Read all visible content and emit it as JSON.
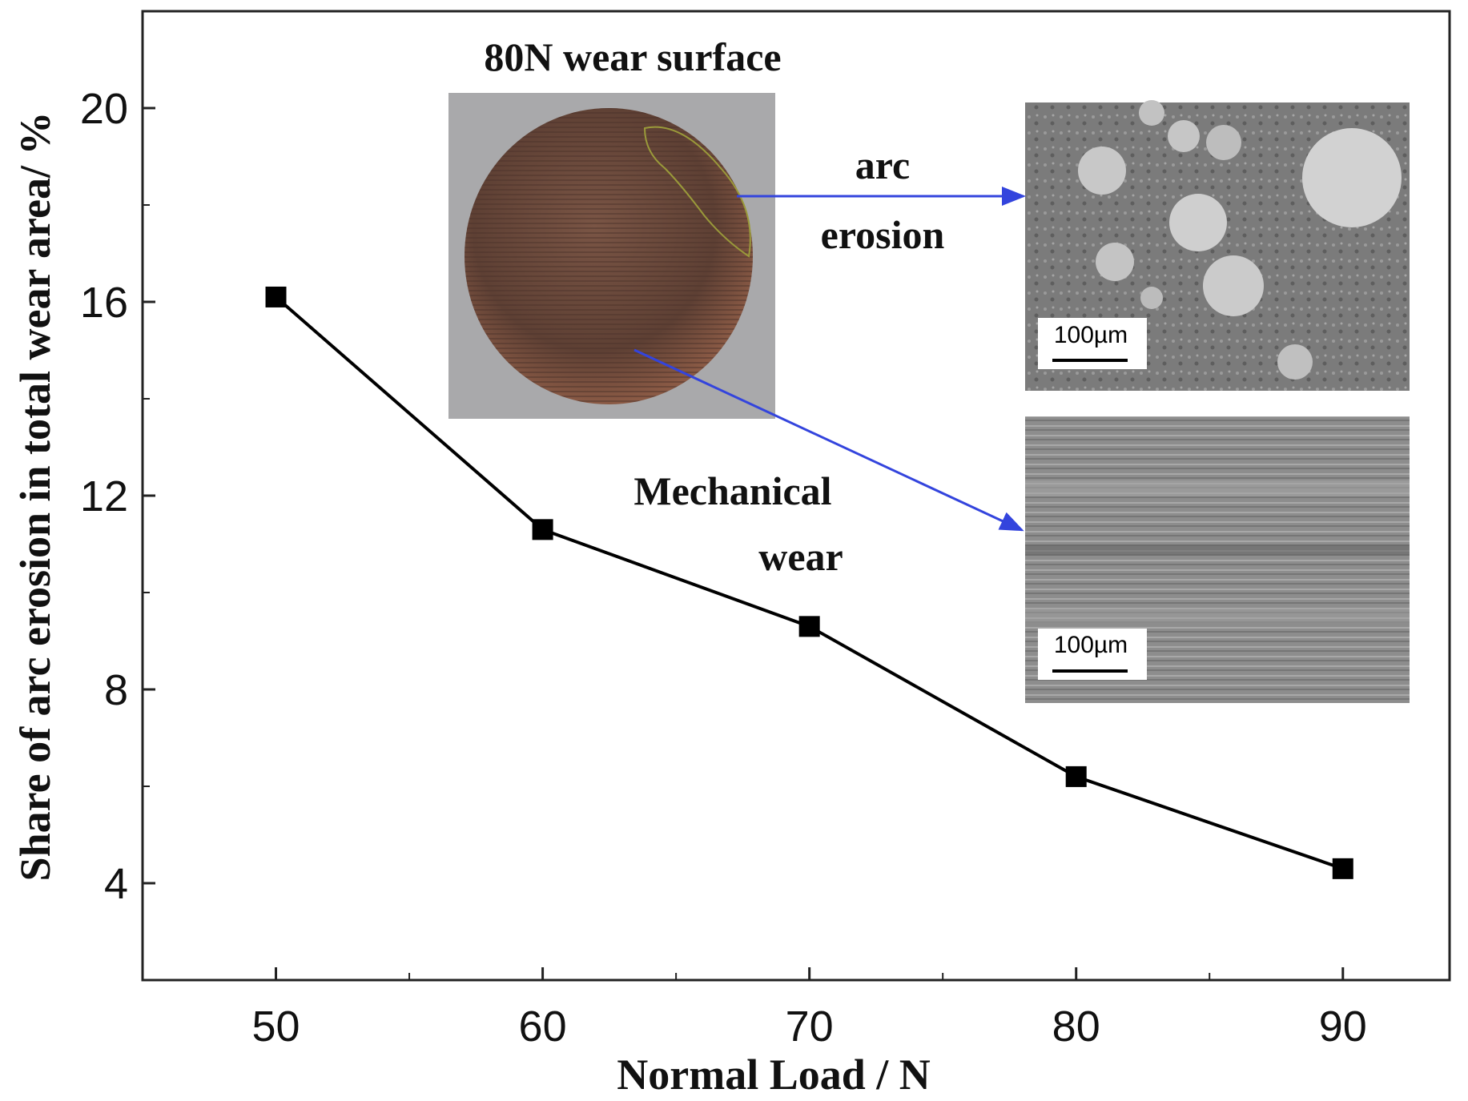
{
  "chart_data": {
    "type": "line",
    "title": "",
    "xlabel": "Normal Load / N",
    "ylabel": "Share of arc erosion in total wear area/ %",
    "x": [
      50,
      60,
      70,
      80,
      90
    ],
    "series": [
      {
        "name": "",
        "values": [
          16.1,
          11.3,
          9.3,
          6.2,
          4.3
        ],
        "color": "#000000",
        "marker": "square"
      }
    ],
    "xlim": [
      45,
      94
    ],
    "ylim": [
      2,
      22
    ],
    "xticks": [
      50,
      60,
      70,
      80,
      90
    ],
    "yticks": [
      4,
      8,
      12,
      16,
      20
    ],
    "grid": false
  },
  "insets": {
    "wear_surface_title": "80N wear surface",
    "arc_label_line1": "arc",
    "arc_label_line2": "erosion",
    "mech_label_line1": "Mechanical",
    "mech_label_line2": "wear",
    "scale_bar_top": "100µm",
    "scale_bar_bottom": "100µm",
    "arrow_color": "#3344dd"
  }
}
